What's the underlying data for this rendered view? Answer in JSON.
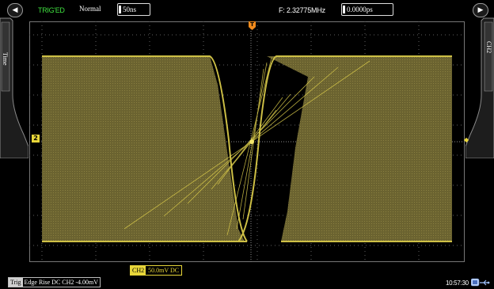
{
  "top": {
    "trigger_state": "TRIG'ED",
    "acquire_mode": "Normal",
    "timebase": "50ns",
    "frequency": "F: 2.32775MHz",
    "trigger_position": "0.0000ps"
  },
  "side_tabs": {
    "left_label": "Time",
    "right_label": "CH2"
  },
  "markers": {
    "channel_marker": "2",
    "trigger_marker": "T"
  },
  "bottom": {
    "channel_tag": "CH2",
    "channel_value": "50.0mV DC",
    "trigger_tag": "Trig",
    "trigger_value": "Edge Rise DC CH2 -4.00mV",
    "clock": "10:57:30"
  },
  "colors": {
    "trace": "#e8d63a",
    "trig_state": "#3fe03f",
    "trigger_marker": "#f08a1c",
    "grid": "#6a6a6a"
  },
  "icons": {
    "left_arrow": "left-arrow-icon",
    "right_arrow": "right-arrow-icon",
    "usb": "usb-icon"
  }
}
